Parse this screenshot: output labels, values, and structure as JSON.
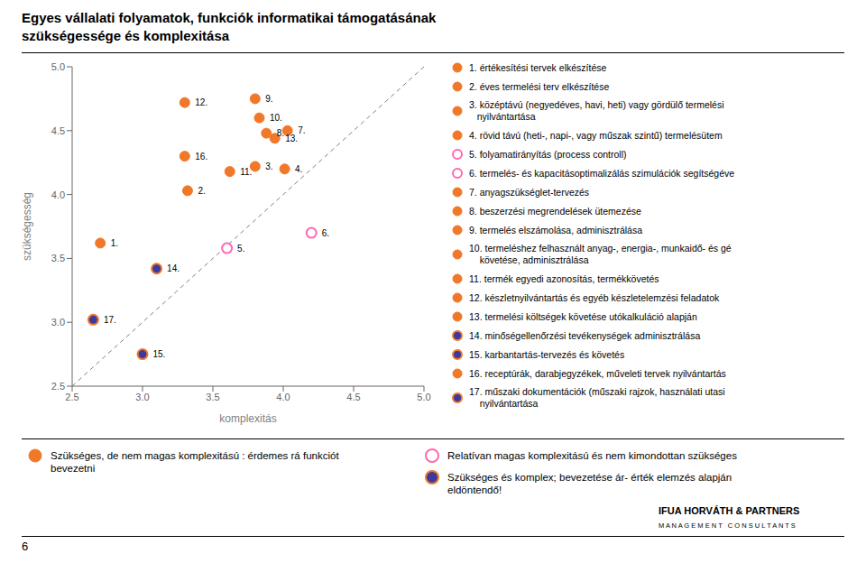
{
  "chart_data": {
    "type": "scatter",
    "title": "Egyes vállalati folyamatok, funkciók informatikai támogatásának\nszükségessége és komplexitása",
    "xlabel": "komplexitás",
    "ylabel": "szükségesség",
    "xlim": [
      2.5,
      5.0
    ],
    "ylim": [
      2.5,
      5.0
    ],
    "xticks": [
      2.5,
      {
        "value": 3.0,
        "label": "3.0"
      },
      3.5,
      {
        "value": 4.0,
        "label": "4.0"
      },
      4.5,
      {
        "value": 5.0,
        "label": "5.0"
      }
    ],
    "yticks": [
      2.5,
      {
        "value": 3.0,
        "label": "3.0"
      },
      3.5,
      {
        "value": 4.0,
        "label": "4.0"
      },
      4.5,
      {
        "value": 5.0,
        "label": "5.0"
      }
    ],
    "grid": false,
    "legend": "bottom",
    "reference_line": {
      "x": [
        2.5,
        5.0
      ],
      "y": [
        2.5,
        5.0
      ],
      "color": "#808080",
      "line_style": "dashed"
    },
    "series": [
      {
        "name": "Szükséges, de nem magas komplexitású : érdemes rá funkciót\nbevezetni",
        "color": "#F07828",
        "marker": "circle"
      },
      {
        "name": "Relatívan magas komplexitású és nem kimondottan szükséges",
        "color": "#FF69B4",
        "marker": "open_circle"
      },
      {
        "name": "Szükséges és komplex; bevezetése ár- érték elemzés alapján\neldöntendő!",
        "color": "#3A3A9F",
        "marker": "circle",
        "edge_color": "#F07828"
      }
    ],
    "points": [
      {
        "x": 2.7,
        "y": 3.62,
        "label": "1.",
        "group": 0,
        "description": "1. értékesítési tervek elkészítése"
      },
      {
        "x": 3.32,
        "y": 4.03,
        "label": "2.",
        "group": 0,
        "description": "2. éves termelési terv elkészítése"
      },
      {
        "x": 3.8,
        "y": 4.22,
        "label": "3.",
        "group": 0,
        "description": "3. középtávú (negyedéves, havi, heti) vagy gördülő termelési\n   nyilvántartása"
      },
      {
        "x": 4.01,
        "y": 4.2,
        "label": "4.",
        "group": 0,
        "description": "4. rövid távú (heti-, napi-, vagy műszak szintű) termelésütem"
      },
      {
        "x": 3.6,
        "y": 3.58,
        "label": "5.",
        "group": 1,
        "description": "5. folyamatirányítás (process controll)"
      },
      {
        "x": 4.2,
        "y": 3.7,
        "label": "6.",
        "group": 1,
        "description": "6. termelés- és kapacitásoptimalizálás szimulációk segítségéve"
      },
      {
        "x": 4.03,
        "y": 4.5,
        "label": "7.",
        "group": 0,
        "description": "7. anyagszükséglet-tervezés"
      },
      {
        "x": 3.88,
        "y": 4.48,
        "label": "8.",
        "group": 0,
        "description": "8. beszerzési megrendelések ütemezése"
      },
      {
        "x": 3.8,
        "y": 4.75,
        "label": "9.",
        "group": 0,
        "description": "9. termelés elszámolása, adminisztrálása"
      },
      {
        "x": 3.83,
        "y": 4.6,
        "label": "10.",
        "group": 0,
        "description": "10. termeléshez felhasznált anyag-, energia-, munkaidő- és gé\n    követése, adminisztrálása"
      },
      {
        "x": 3.62,
        "y": 4.18,
        "label": "11.",
        "group": 0,
        "description": "11. termék egyedi azonosítás, termékkövetés"
      },
      {
        "x": 3.3,
        "y": 4.72,
        "label": "12.",
        "group": 0,
        "description": "12. készletnyilvántartás és egyéb készletelemzési feladatok"
      },
      {
        "x": 3.94,
        "y": 4.44,
        "label": "13.",
        "group": 0,
        "description": "13. termelési költségek követése utókalkuláció alapján"
      },
      {
        "x": 3.1,
        "y": 3.42,
        "label": "14.",
        "group": 2,
        "description": "14. minőségellenőrzési tevékenységek adminisztrálása"
      },
      {
        "x": 3.0,
        "y": 2.75,
        "label": "15.",
        "group": 2,
        "description": "15. karbantartás-tervezés és követés"
      },
      {
        "x": 3.3,
        "y": 4.3,
        "label": "16.",
        "group": 0,
        "description": "16. receptúrák, darabjegyzékek, műveleti tervek nyilvántartás"
      },
      {
        "x": 2.65,
        "y": 3.02,
        "label": "17.",
        "group": 2,
        "description": "17. műszaki dokumentációk (műszaki rajzok, használati utasi\n    nyilvántartása"
      }
    ],
    "annotations": [
      "6",
      "IFUA HORVÁTH & PARTNERS",
      "M A N A G E M E N T   C O N S U L T A N T S"
    ]
  }
}
